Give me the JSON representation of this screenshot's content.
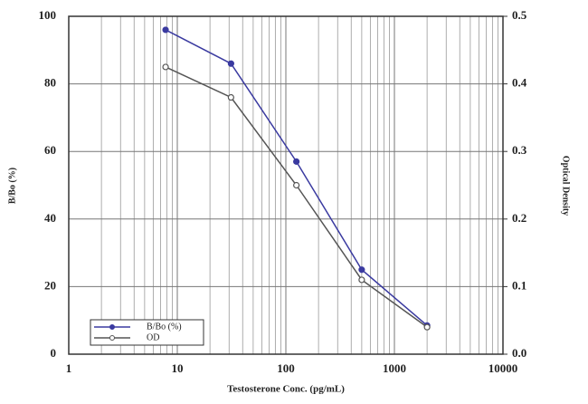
{
  "chart_data": {
    "type": "line",
    "x_label": "Testosterone Conc. (pg/mL)",
    "y_label": "B/Bo (%)",
    "y2_label": "Optical Density",
    "x": [
      7.8,
      31.25,
      125,
      500,
      2000
    ],
    "series": [
      {
        "name": "B/Bo (%)",
        "color": "#3a3aa0",
        "marker": "filled",
        "values": [
          96,
          86,
          57,
          25,
          8.5
        ]
      },
      {
        "name": "OD",
        "color": "#555555",
        "marker": "open",
        "axis": "y2",
        "values": [
          0.425,
          0.38,
          0.25,
          0.11,
          0.04
        ]
      }
    ],
    "xlim": [
      1,
      10000
    ],
    "xticks": [
      1,
      10,
      100,
      1000,
      10000
    ],
    "xscale": "log",
    "ylim": [
      0,
      100
    ],
    "yticks": [
      0,
      20,
      40,
      60,
      80,
      100
    ],
    "y2lim": [
      0,
      0.5
    ],
    "y2ticks": [
      {
        "value": 0,
        "label": "0.0"
      },
      0.1,
      0.2,
      0.3,
      0.4,
      0.5
    ],
    "grid": true,
    "legend": "lower left"
  }
}
